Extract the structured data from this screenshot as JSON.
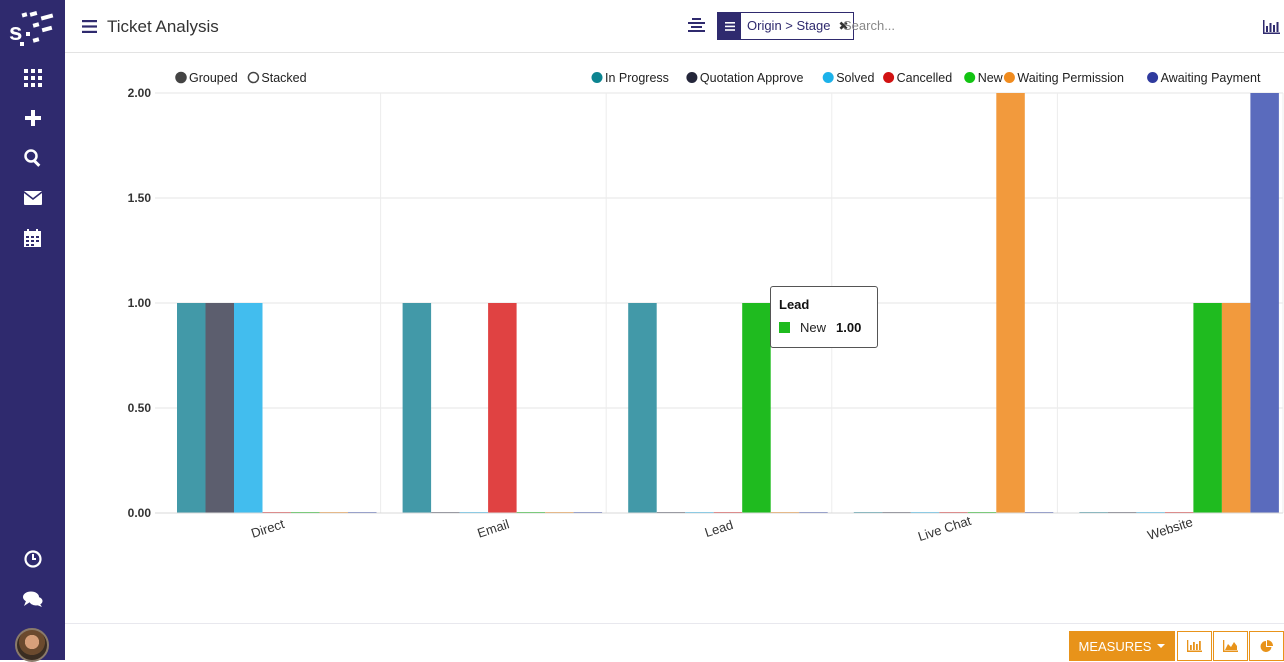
{
  "header": {
    "title": "Ticket Analysis",
    "facet": "Origin > Stage",
    "search_placeholder": "Search..."
  },
  "chart_data": {
    "type": "bar",
    "categories": [
      "Direct",
      "Email",
      "Lead",
      "Live Chat",
      "Website"
    ],
    "series": [
      {
        "name": "In Progress",
        "color": "#4299a8",
        "values": [
          1,
          1,
          1,
          0,
          0
        ]
      },
      {
        "name": "Quotation Approve",
        "color": "#5c5e6e",
        "values": [
          1,
          0,
          0,
          0,
          0
        ]
      },
      {
        "name": "Solved",
        "color": "#42bdee",
        "values": [
          1,
          0,
          0,
          0,
          0
        ]
      },
      {
        "name": "Cancelled",
        "color": "#e04242",
        "values": [
          0,
          1,
          0,
          0,
          0
        ]
      },
      {
        "name": "New",
        "color": "#1fbb1f",
        "values": [
          0,
          0,
          1,
          0,
          1
        ]
      },
      {
        "name": "Waiting Permission",
        "color": "#f29a3d",
        "values": [
          0,
          0,
          0,
          2,
          1
        ]
      },
      {
        "name": "Awaiting Payment",
        "color": "#5a6bbd",
        "values": [
          0,
          0,
          0,
          0,
          2
        ]
      }
    ],
    "legend_colors": [
      "#0c8490",
      "#24263a",
      "#1cb2ea",
      "#d11212",
      "#12c412",
      "#f08b1e",
      "#2f3a9e"
    ],
    "yticks": [
      "0.00",
      "0.50",
      "1.00",
      "1.50",
      "2.00"
    ],
    "ylim": [
      0,
      2
    ],
    "grid": true,
    "legend_position": "top-right",
    "mode_options": [
      "Grouped",
      "Stacked"
    ],
    "mode_selected": "Grouped"
  },
  "tooltip": {
    "title": "Lead",
    "label": "New",
    "value": "1.00"
  },
  "bottom": {
    "measures_label": "MEASURES"
  }
}
